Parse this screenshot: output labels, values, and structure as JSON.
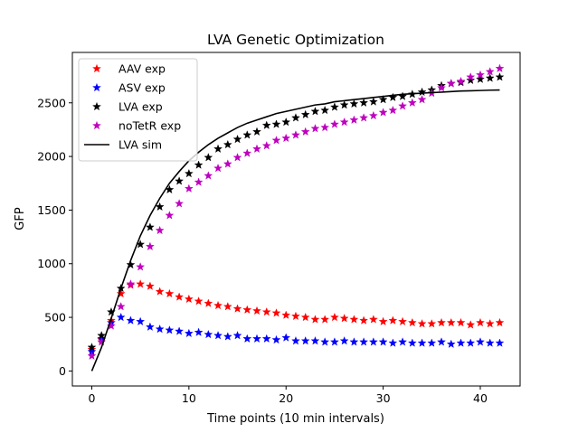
{
  "chart_data": {
    "type": "scatter",
    "title": "LVA Genetic Optimization",
    "xlabel": "Time points (10 min intervals)",
    "ylabel": "GFP",
    "xlim": [
      -2,
      44.1
    ],
    "ylim": [
      -140,
      2970
    ],
    "xticks": [
      0,
      10,
      20,
      30,
      40
    ],
    "yticks": [
      0,
      500,
      1000,
      1500,
      2000,
      2500
    ],
    "grid": false,
    "legend_position": "top-left",
    "series": [
      {
        "name": "AAV exp",
        "marker": "star",
        "color": "#ff0000",
        "x": [
          0,
          1,
          2,
          3,
          4,
          5,
          6,
          7,
          8,
          9,
          10,
          11,
          12,
          13,
          14,
          15,
          16,
          17,
          18,
          19,
          20,
          21,
          22,
          23,
          24,
          25,
          26,
          27,
          28,
          29,
          30,
          31,
          32,
          33,
          34,
          35,
          36,
          37,
          38,
          39,
          40,
          41,
          42
        ],
        "y": [
          200,
          290,
          470,
          720,
          800,
          810,
          790,
          740,
          720,
          690,
          670,
          650,
          630,
          610,
          600,
          580,
          570,
          560,
          550,
          540,
          520,
          510,
          500,
          480,
          480,
          500,
          490,
          480,
          470,
          480,
          460,
          470,
          460,
          450,
          440,
          440,
          450,
          450,
          450,
          430,
          450,
          440,
          450
        ]
      },
      {
        "name": "ASV exp",
        "marker": "star",
        "color": "#0000ff",
        "x": [
          0,
          1,
          2,
          3,
          4,
          5,
          6,
          7,
          8,
          9,
          10,
          11,
          12,
          13,
          14,
          15,
          16,
          17,
          18,
          19,
          20,
          21,
          22,
          23,
          24,
          25,
          26,
          27,
          28,
          29,
          30,
          31,
          32,
          33,
          34,
          35,
          36,
          37,
          38,
          39,
          40,
          41,
          42
        ],
        "y": [
          180,
          300,
          450,
          500,
          470,
          460,
          410,
          390,
          380,
          370,
          350,
          360,
          340,
          330,
          320,
          330,
          300,
          300,
          300,
          290,
          310,
          280,
          280,
          280,
          270,
          270,
          280,
          270,
          270,
          270,
          270,
          260,
          270,
          260,
          260,
          260,
          270,
          250,
          260,
          260,
          270,
          260,
          260
        ]
      },
      {
        "name": "LVA exp",
        "marker": "star",
        "color": "#000000",
        "x": [
          0,
          1,
          2,
          3,
          4,
          5,
          6,
          7,
          8,
          9,
          10,
          11,
          12,
          13,
          14,
          15,
          16,
          17,
          18,
          19,
          20,
          21,
          22,
          23,
          24,
          25,
          26,
          27,
          28,
          29,
          30,
          31,
          32,
          33,
          34,
          35,
          36,
          37,
          38,
          39,
          40,
          41,
          42
        ],
        "y": [
          220,
          330,
          550,
          770,
          990,
          1180,
          1340,
          1530,
          1690,
          1770,
          1840,
          1920,
          1990,
          2070,
          2110,
          2160,
          2200,
          2230,
          2290,
          2300,
          2320,
          2360,
          2390,
          2420,
          2430,
          2460,
          2480,
          2490,
          2500,
          2510,
          2530,
          2550,
          2560,
          2580,
          2600,
          2620,
          2660,
          2680,
          2690,
          2710,
          2720,
          2730,
          2740
        ]
      },
      {
        "name": "noTetR exp",
        "marker": "star",
        "color": "#bf00bf",
        "x": [
          0,
          1,
          2,
          3,
          4,
          5,
          6,
          7,
          8,
          9,
          10,
          11,
          12,
          13,
          14,
          15,
          16,
          17,
          18,
          19,
          20,
          21,
          22,
          23,
          24,
          25,
          26,
          27,
          28,
          29,
          30,
          31,
          32,
          33,
          34,
          35,
          36,
          37,
          38,
          39,
          40,
          41,
          42
        ],
        "y": [
          140,
          270,
          420,
          600,
          810,
          970,
          1160,
          1310,
          1450,
          1560,
          1700,
          1760,
          1820,
          1890,
          1930,
          1990,
          2030,
          2070,
          2100,
          2150,
          2170,
          2200,
          2230,
          2260,
          2270,
          2300,
          2320,
          2340,
          2360,
          2380,
          2410,
          2430,
          2470,
          2500,
          2530,
          2590,
          2640,
          2680,
          2700,
          2740,
          2760,
          2790,
          2820
        ]
      },
      {
        "name": "LVA sim",
        "marker": "line",
        "color": "#000000",
        "x": [
          0,
          1,
          2,
          3,
          4,
          5,
          6,
          7,
          8,
          9,
          10,
          11,
          12,
          13,
          14,
          15,
          16,
          17,
          18,
          19,
          20,
          21,
          22,
          23,
          24,
          25,
          26,
          27,
          28,
          29,
          30,
          31,
          32,
          33,
          34,
          35,
          36,
          37,
          38,
          39,
          40,
          41,
          42
        ],
        "y": [
          0,
          220,
          490,
          770,
          1030,
          1260,
          1450,
          1610,
          1750,
          1860,
          1960,
          2040,
          2110,
          2170,
          2220,
          2270,
          2310,
          2340,
          2370,
          2400,
          2420,
          2440,
          2460,
          2480,
          2490,
          2510,
          2520,
          2530,
          2540,
          2550,
          2560,
          2570,
          2580,
          2585,
          2590,
          2595,
          2600,
          2605,
          2610,
          2612,
          2615,
          2618,
          2620
        ]
      }
    ]
  }
}
